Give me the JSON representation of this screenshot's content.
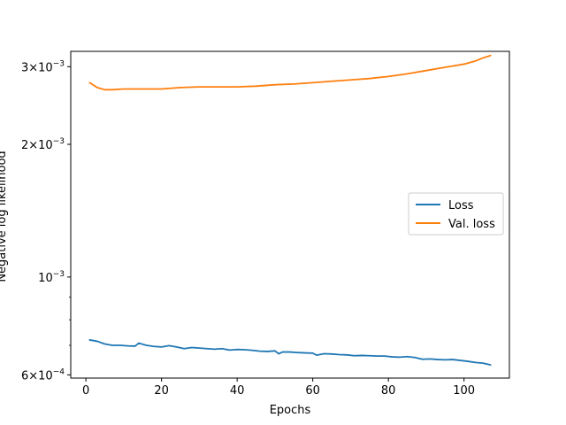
{
  "chart_data": {
    "type": "line",
    "xlabel": "Epochs",
    "ylabel": "Negative log likelihood",
    "xlim": [
      -4,
      112
    ],
    "ylim": [
      0.00059,
      0.00325
    ],
    "yscale": "log",
    "grid": false,
    "legend_position": "center-right",
    "x_ticks": [
      0,
      20,
      40,
      60,
      80,
      100
    ],
    "x_tick_labels": [
      "0",
      "20",
      "40",
      "60",
      "80",
      "100"
    ],
    "y_major_ticks": [
      0.0006,
      0.001,
      0.002,
      0.003
    ],
    "y_tick_labels": {
      "6e-4": {
        "mantissa": "6",
        "exponent": "−4"
      },
      "1e-3": {
        "mantissa": "",
        "exponent": "−3"
      },
      "2e-3": {
        "mantissa": "2",
        "exponent": "−3"
      },
      "3e-3": {
        "mantissa": "3",
        "exponent": "−3"
      }
    },
    "series": [
      {
        "name": "Loss",
        "color": "#1f77b4",
        "x": [
          1,
          3,
          5,
          7,
          9,
          11,
          13,
          14,
          16,
          18,
          20,
          22,
          24,
          26,
          28,
          30,
          32,
          34,
          36,
          38,
          40,
          42,
          44,
          46,
          48,
          50,
          51,
          52,
          54,
          56,
          58,
          60,
          61,
          63,
          65,
          67,
          69,
          71,
          73,
          75,
          77,
          79,
          81,
          83,
          85,
          87,
          89,
          91,
          93,
          95,
          97,
          99,
          101,
          103,
          105,
          107
        ],
        "values": [
          0.00072,
          0.000715,
          0.000705,
          0.0007,
          0.0007,
          0.000698,
          0.000697,
          0.000708,
          0.0007,
          0.000696,
          0.000694,
          0.000699,
          0.000694,
          0.000688,
          0.000692,
          0.00069,
          0.000688,
          0.000686,
          0.000688,
          0.000683,
          0.000685,
          0.000684,
          0.000682,
          0.000679,
          0.000678,
          0.00068,
          0.00067,
          0.000676,
          0.000676,
          0.000674,
          0.000673,
          0.000672,
          0.000665,
          0.00067,
          0.000669,
          0.000667,
          0.000666,
          0.000663,
          0.000664,
          0.000663,
          0.000662,
          0.000662,
          0.000659,
          0.000658,
          0.00066,
          0.000657,
          0.000651,
          0.000652,
          0.00065,
          0.000649,
          0.00065,
          0.000647,
          0.000644,
          0.00064,
          0.000638,
          0.000632
        ]
      },
      {
        "name": "Val. loss",
        "color": "#ff7f0e",
        "x": [
          1,
          3,
          5,
          7,
          10,
          15,
          20,
          25,
          30,
          35,
          40,
          45,
          50,
          55,
          60,
          65,
          70,
          75,
          80,
          85,
          90,
          95,
          100,
          103,
          105,
          107
        ],
        "values": [
          0.00276,
          0.00269,
          0.00266,
          0.00266,
          0.00267,
          0.00267,
          0.00267,
          0.00269,
          0.0027,
          0.0027,
          0.0027,
          0.00271,
          0.00273,
          0.00274,
          0.00276,
          0.00278,
          0.0028,
          0.00282,
          0.00285,
          0.00289,
          0.00294,
          0.00299,
          0.00304,
          0.00309,
          0.00314,
          0.00318
        ]
      }
    ]
  }
}
